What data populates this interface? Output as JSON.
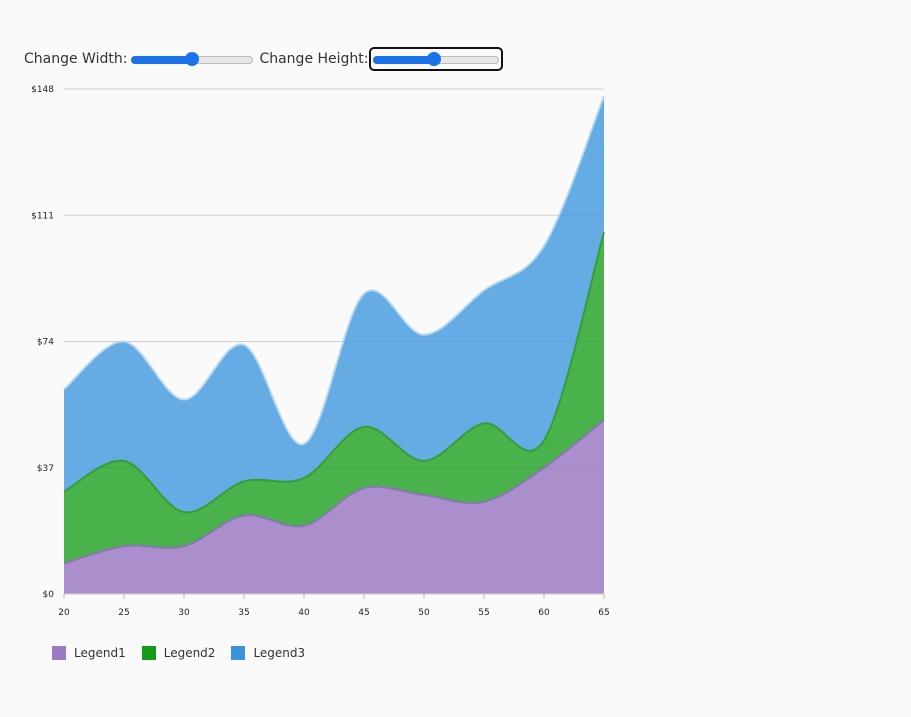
{
  "controls": {
    "width_label": "Change Width:",
    "height_label": "Change Height:",
    "width_value": 0.5,
    "height_value": 0.5
  },
  "chart_data": {
    "type": "area",
    "stacked": true,
    "title": "",
    "xlabel": "",
    "ylabel": "",
    "x": [
      20,
      25,
      30,
      35,
      40,
      45,
      50,
      55,
      60,
      65
    ],
    "ylim": [
      0,
      148
    ],
    "yticks": [
      "$0",
      "$37",
      "$74",
      "$111",
      "$148"
    ],
    "ytick_values": [
      0,
      37,
      74,
      111,
      148
    ],
    "grid": true,
    "legend_position": "bottom-left",
    "series": [
      {
        "name": "Legend1",
        "color": "#9b7bc3",
        "values": [
          9,
          14,
          14,
          23,
          20,
          31,
          29,
          27,
          37,
          51
        ]
      },
      {
        "name": "Legend2",
        "color": "#2aa52a",
        "values": [
          21,
          25,
          10,
          10,
          14,
          18,
          10,
          23,
          8,
          55
        ]
      },
      {
        "name": "Legend3",
        "color": "#4a9de0",
        "values": [
          30,
          35,
          33,
          40,
          10,
          39,
          37,
          39,
          57,
          40
        ]
      }
    ]
  }
}
